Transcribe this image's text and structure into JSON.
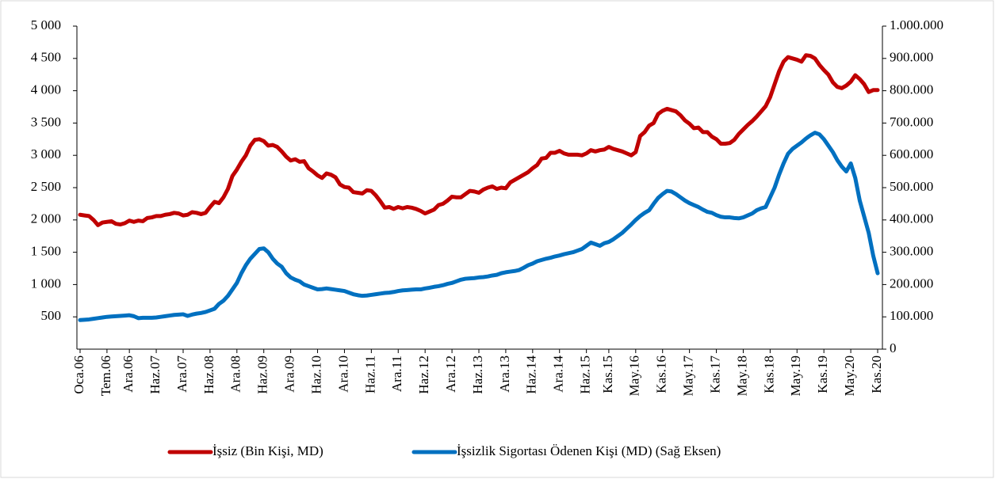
{
  "chart_data": {
    "type": "line",
    "categories": [
      "Oca.06",
      null,
      null,
      null,
      null,
      null,
      "Tem.06",
      null,
      null,
      null,
      null,
      "Ara.06",
      null,
      null,
      null,
      null,
      null,
      "Haz.07",
      null,
      null,
      null,
      null,
      null,
      "Ara.07",
      null,
      null,
      null,
      null,
      null,
      "Haz.08",
      null,
      null,
      null,
      null,
      null,
      "Ara.08",
      null,
      null,
      null,
      null,
      null,
      "Haz.09",
      null,
      null,
      null,
      null,
      null,
      "Ara.09",
      null,
      null,
      null,
      null,
      null,
      "Haz.10",
      null,
      null,
      null,
      null,
      null,
      "Ara.10",
      null,
      null,
      null,
      null,
      null,
      "Haz.11",
      null,
      null,
      null,
      null,
      null,
      "Ara.11",
      null,
      null,
      null,
      null,
      null,
      "Haz.12",
      null,
      null,
      null,
      null,
      null,
      "Ara.12",
      null,
      null,
      null,
      null,
      null,
      "Haz.13",
      null,
      null,
      null,
      null,
      null,
      "Ara.13",
      null,
      null,
      null,
      null,
      null,
      "Haz.14",
      null,
      null,
      null,
      null,
      null,
      "Ara.14",
      null,
      null,
      null,
      null,
      null,
      "Haz.15",
      null,
      null,
      null,
      null,
      "Kas.15",
      null,
      null,
      null,
      null,
      null,
      "May.16",
      null,
      null,
      null,
      null,
      null,
      "Kas.16",
      null,
      null,
      null,
      null,
      null,
      "May.17",
      null,
      null,
      null,
      null,
      null,
      "Kas.17",
      null,
      null,
      null,
      null,
      null,
      "May.18",
      null,
      null,
      null,
      null,
      null,
      "Kas.18",
      null,
      null,
      null,
      null,
      null,
      "May.19",
      null,
      null,
      null,
      null,
      null,
      "Kas.19",
      null,
      null,
      null,
      null,
      null,
      "May.20",
      null,
      null,
      null,
      null,
      null,
      "Kas.20"
    ],
    "series": [
      {
        "name": "İşsiz (Bin Kişi, MD)",
        "color": "#c00000",
        "axis": "y",
        "values": [
          2080,
          2070,
          2060,
          2000,
          1920,
          1960,
          1970,
          1980,
          1940,
          1930,
          1950,
          1990,
          1970,
          1990,
          1980,
          2030,
          2040,
          2060,
          2060,
          2080,
          2090,
          2110,
          2100,
          2070,
          2080,
          2120,
          2110,
          2090,
          2110,
          2200,
          2280,
          2260,
          2350,
          2480,
          2680,
          2780,
          2900,
          3000,
          3150,
          3240,
          3250,
          3220,
          3150,
          3160,
          3130,
          3060,
          2980,
          2920,
          2940,
          2900,
          2910,
          2800,
          2750,
          2690,
          2650,
          2720,
          2700,
          2660,
          2550,
          2510,
          2500,
          2430,
          2420,
          2410,
          2460,
          2450,
          2380,
          2290,
          2190,
          2200,
          2170,
          2200,
          2180,
          2200,
          2190,
          2170,
          2140,
          2100,
          2130,
          2160,
          2230,
          2250,
          2300,
          2360,
          2350,
          2350,
          2400,
          2450,
          2440,
          2420,
          2470,
          2500,
          2520,
          2480,
          2500,
          2490,
          2580,
          2620,
          2660,
          2700,
          2740,
          2800,
          2850,
          2950,
          2960,
          3040,
          3040,
          3070,
          3030,
          3010,
          3010,
          3010,
          3000,
          3030,
          3080,
          3060,
          3080,
          3090,
          3130,
          3100,
          3080,
          3060,
          3030,
          3000,
          3050,
          3300,
          3360,
          3460,
          3500,
          3640,
          3690,
          3720,
          3700,
          3680,
          3620,
          3540,
          3490,
          3420,
          3430,
          3360,
          3360,
          3290,
          3250,
          3180,
          3180,
          3190,
          3240,
          3330,
          3400,
          3470,
          3530,
          3600,
          3680,
          3760,
          3900,
          4100,
          4300,
          4450,
          4520,
          4500,
          4480,
          4450,
          4550,
          4540,
          4500,
          4400,
          4320,
          4250,
          4130,
          4060,
          4040,
          4080,
          4140,
          4240,
          4180,
          4100,
          3980,
          4010,
          4010
        ]
      },
      {
        "name": "İşsizlik Sigortası Ödenen Kişi (MD) (Sağ Eksen)",
        "color": "#0070c0",
        "axis": "y2",
        "values": [
          90000,
          91000,
          92000,
          94000,
          96000,
          98000,
          100000,
          101000,
          102000,
          103000,
          104000,
          105000,
          102000,
          96000,
          97000,
          97000,
          97000,
          98000,
          100000,
          102000,
          104000,
          106000,
          107000,
          108000,
          103000,
          107000,
          110000,
          112000,
          115000,
          120000,
          125000,
          140000,
          150000,
          165000,
          185000,
          205000,
          235000,
          260000,
          280000,
          295000,
          310000,
          312000,
          300000,
          280000,
          265000,
          255000,
          235000,
          222000,
          215000,
          210000,
          200000,
          195000,
          190000,
          185000,
          186000,
          188000,
          186000,
          184000,
          182000,
          180000,
          175000,
          170000,
          167000,
          165000,
          166000,
          168000,
          170000,
          172000,
          174000,
          175000,
          177000,
          180000,
          182000,
          183000,
          184000,
          185000,
          185000,
          188000,
          190000,
          193000,
          195000,
          198000,
          202000,
          205000,
          210000,
          215000,
          218000,
          219000,
          220000,
          222000,
          223000,
          225000,
          228000,
          230000,
          235000,
          238000,
          240000,
          242000,
          245000,
          252000,
          260000,
          265000,
          272000,
          276000,
          280000,
          283000,
          287000,
          290000,
          294000,
          297000,
          300000,
          305000,
          310000,
          320000,
          330000,
          325000,
          320000,
          328000,
          332000,
          340000,
          350000,
          360000,
          373000,
          386000,
          400000,
          412000,
          422000,
          430000,
          450000,
          468000,
          480000,
          490000,
          488000,
          480000,
          470000,
          460000,
          452000,
          446000,
          440000,
          432000,
          425000,
          422000,
          415000,
          410000,
          408000,
          408000,
          406000,
          405000,
          408000,
          414000,
          420000,
          430000,
          436000,
          440000,
          470000,
          500000,
          540000,
          575000,
          605000,
          620000,
          630000,
          640000,
          652000,
          662000,
          670000,
          665000,
          650000,
          630000,
          610000,
          585000,
          565000,
          550000,
          575000,
          530000,
          460000,
          410000,
          360000,
          290000,
          235000
        ]
      }
    ],
    "ylim": [
      0,
      5000
    ],
    "yticks": [
      {
        "value": 500,
        "label": "500"
      },
      {
        "value": 1000,
        "label": "1 000"
      },
      {
        "value": 1500,
        "label": "1 500"
      },
      {
        "value": 2000,
        "label": "2 000"
      },
      {
        "value": 2500,
        "label": "2 500"
      },
      {
        "value": 3000,
        "label": "3 000"
      },
      {
        "value": 3500,
        "label": "3 500"
      },
      {
        "value": 4000,
        "label": "4 000"
      },
      {
        "value": 4500,
        "label": "4 500"
      },
      {
        "value": 5000,
        "label": "5 000"
      }
    ],
    "y2lim": [
      0,
      1000000
    ],
    "y2ticks": [
      0,
      {
        "value": 100000,
        "label": "100.000"
      },
      {
        "value": 200000,
        "label": "200.000"
      },
      {
        "value": 300000,
        "label": "300.000"
      },
      {
        "value": 400000,
        "label": "400.000"
      },
      {
        "value": 500000,
        "label": "500.000"
      },
      {
        "value": 600000,
        "label": "600.000"
      },
      {
        "value": 700000,
        "label": "700.000"
      },
      {
        "value": 800000,
        "label": "800.000"
      },
      {
        "value": 900000,
        "label": "900.000"
      },
      {
        "value": 1000000,
        "label": "1.000.000"
      }
    ],
    "grid": false,
    "legend": "bottom"
  }
}
